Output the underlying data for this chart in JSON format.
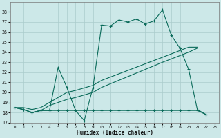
{
  "background_color": "#cce8e8",
  "grid_color": "#aacccc",
  "line_color": "#0a6b5a",
  "xlabel": "Humidex (Indice chaleur)",
  "ylim": [
    17,
    29
  ],
  "xlim": [
    -0.5,
    23.5
  ],
  "yticks": [
    17,
    18,
    19,
    20,
    21,
    22,
    23,
    24,
    25,
    26,
    27,
    28
  ],
  "xticks": [
    0,
    1,
    2,
    3,
    4,
    5,
    6,
    7,
    8,
    9,
    10,
    11,
    12,
    13,
    14,
    15,
    16,
    17,
    18,
    19,
    20,
    21,
    22,
    23
  ],
  "series_wave_x": [
    0,
    1,
    2,
    3,
    4,
    5,
    6,
    7,
    8,
    9,
    10,
    11,
    12,
    13,
    14,
    15,
    16,
    17,
    18,
    19,
    20,
    21,
    22
  ],
  "series_wave_y": [
    18.5,
    18.3,
    18.0,
    18.2,
    18.2,
    22.5,
    20.5,
    18.2,
    17.2,
    20.5,
    26.7,
    26.6,
    27.2,
    27.0,
    27.3,
    26.8,
    27.1,
    28.2,
    25.7,
    24.4,
    22.3,
    18.3,
    17.8
  ],
  "series_flat_x": [
    0,
    1,
    2,
    3,
    4,
    5,
    6,
    7,
    8,
    9,
    10,
    11,
    12,
    13,
    14,
    15,
    16,
    17,
    18,
    19,
    20,
    21,
    22
  ],
  "series_flat_y": [
    18.5,
    18.3,
    18.0,
    18.2,
    18.2,
    18.2,
    18.2,
    18.2,
    18.2,
    18.2,
    18.2,
    18.2,
    18.2,
    18.2,
    18.2,
    18.2,
    18.2,
    18.2,
    18.2,
    18.2,
    18.2,
    18.2,
    17.8
  ],
  "series_diag1_x": [
    0,
    1,
    2,
    3,
    4,
    5,
    6,
    7,
    9,
    10,
    17,
    20,
    21
  ],
  "series_diag1_y": [
    18.5,
    18.3,
    18.0,
    18.2,
    18.7,
    19.0,
    19.3,
    19.5,
    20.0,
    20.5,
    23.0,
    24.0,
    24.4
  ],
  "series_diag2_x": [
    0,
    1,
    2,
    3,
    4,
    5,
    6,
    7,
    9,
    10,
    17,
    20,
    21
  ],
  "series_diag2_y": [
    18.5,
    18.5,
    18.3,
    18.5,
    19.0,
    19.5,
    20.0,
    20.2,
    20.7,
    21.2,
    23.5,
    24.5,
    24.5
  ]
}
